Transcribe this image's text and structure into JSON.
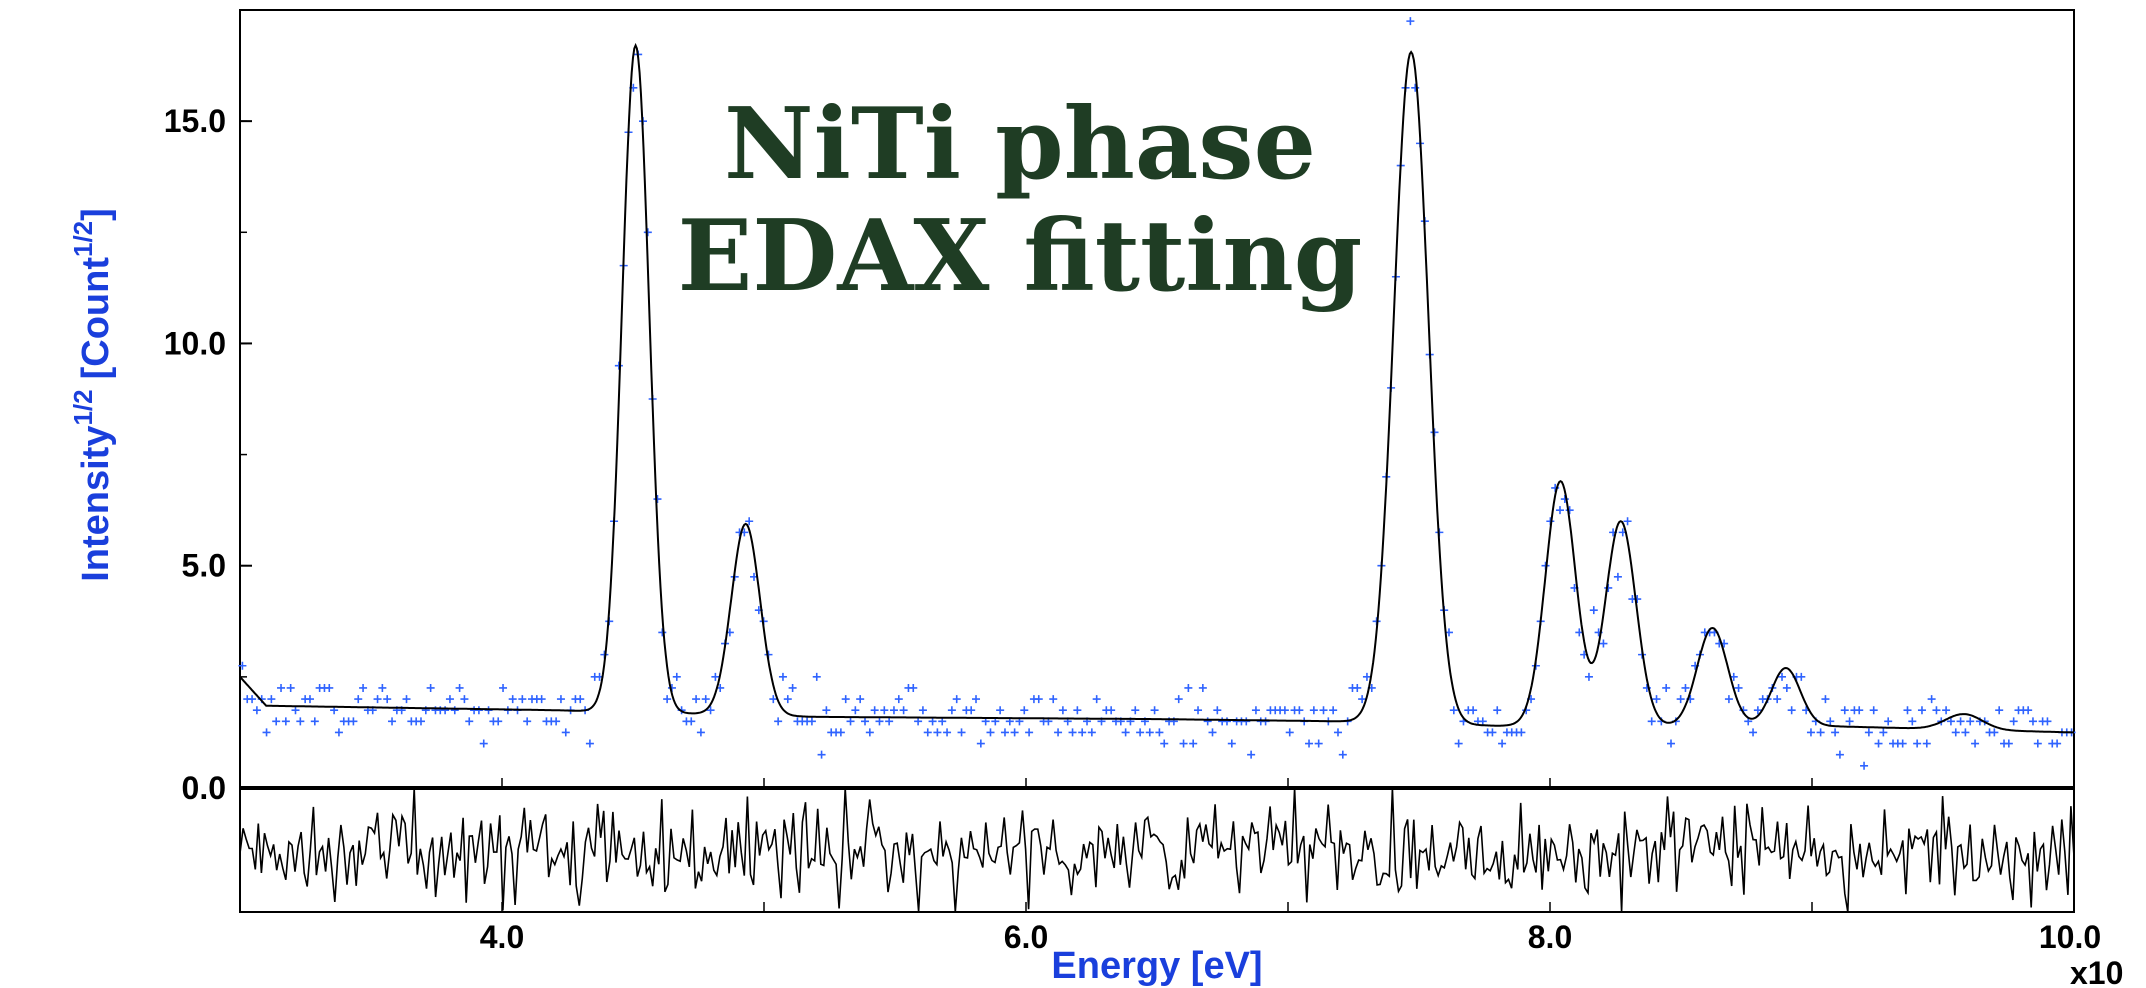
{
  "chart_data": {
    "type": "scatter",
    "title_lines": [
      "NiTi phase",
      "EDAX fitting"
    ],
    "title_color": "#1f3d24",
    "xlabel": "Energy [eV]",
    "ylabel": "Intensity",
    "ylabel_exp1": "1/2",
    "ylabel_unit": "[Count",
    "ylabel_exp2": "1/2",
    "ylabel_close": "]",
    "x_multiplier": "x10",
    "label_color": "#1a3fdc",
    "data_color": "#2f63ff",
    "fit_color": "#000000",
    "xlim": [
      3.0,
      10.0
    ],
    "ylim": [
      0.0,
      17.5
    ],
    "residual_ylim": [
      -2.8,
      0.0
    ],
    "x_ticks": [
      {
        "value": 4.0,
        "label": "4.0"
      },
      {
        "value": 6.0,
        "label": "6.0"
      },
      {
        "value": 8.0,
        "label": "8.0"
      },
      {
        "value": 10.0,
        "label": "10.0"
      }
    ],
    "y_ticks": [
      {
        "value": 0.0,
        "label": "0.0"
      },
      {
        "value": 5.0,
        "label": "5.0"
      },
      {
        "value": 10.0,
        "label": "10.0"
      },
      {
        "value": 15.0,
        "label": "15.0"
      }
    ],
    "fit_model": {
      "background_start": [
        [
          3.0,
          2.5
        ],
        [
          3.1,
          1.85
        ],
        [
          4.2,
          1.75
        ],
        [
          5.2,
          1.6
        ],
        [
          6.5,
          1.55
        ],
        [
          7.2,
          1.5
        ],
        [
          7.8,
          1.4
        ],
        [
          9.0,
          1.4
        ],
        [
          10.0,
          1.25
        ]
      ],
      "peaks": [
        {
          "center": 4.51,
          "height": 15.0,
          "sigma": 0.052
        },
        {
          "center": 4.93,
          "height": 4.3,
          "sigma": 0.055
        },
        {
          "center": 7.47,
          "height": 15.1,
          "sigma": 0.066
        },
        {
          "center": 8.04,
          "height": 5.5,
          "sigma": 0.058
        },
        {
          "center": 8.27,
          "height": 4.6,
          "sigma": 0.058
        },
        {
          "center": 8.62,
          "height": 2.2,
          "sigma": 0.058
        },
        {
          "center": 8.9,
          "height": 1.3,
          "sigma": 0.055
        },
        {
          "center": 9.58,
          "height": 0.35,
          "sigma": 0.07
        }
      ]
    },
    "scatter_count": 380,
    "residual_count": 600
  }
}
